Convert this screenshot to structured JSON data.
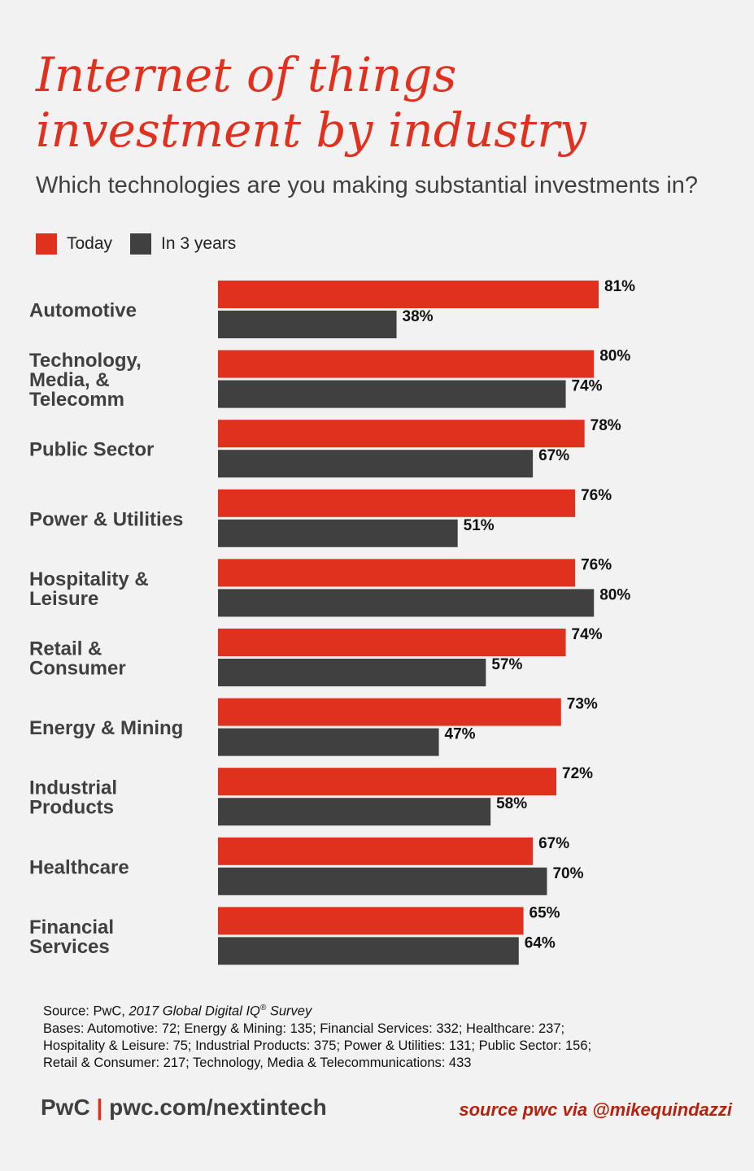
{
  "title": {
    "line1": "Internet of things",
    "line2": "investment by industry"
  },
  "subtitle": "Which technologies are you making substantial investments in?",
  "legend": {
    "today": "Today",
    "in3years": "In 3 years"
  },
  "colors": {
    "today": "#e0301e",
    "in3years": "#404040",
    "background": "#f2f2f2"
  },
  "chart_data": {
    "type": "bar",
    "orientation": "horizontal",
    "categories": [
      [
        "Automotive"
      ],
      [
        "Technology,",
        "Media, &",
        "Telecomm"
      ],
      [
        "Public Sector"
      ],
      [
        "Power & Utilities"
      ],
      [
        "Hospitality &",
        "Leisure"
      ],
      [
        "Retail &",
        "Consumer"
      ],
      [
        "Energy & Mining"
      ],
      [
        "Industrial",
        "Products"
      ],
      [
        "Healthcare"
      ],
      [
        "Financial",
        "Services"
      ]
    ],
    "series": [
      {
        "name": "Today",
        "values": [
          81,
          80,
          78,
          76,
          76,
          74,
          73,
          72,
          67,
          65
        ]
      },
      {
        "name": "In 3 years",
        "values": [
          38,
          74,
          67,
          51,
          80,
          57,
          47,
          58,
          70,
          64
        ]
      }
    ],
    "value_suffix": "%",
    "xlim": [
      0,
      100
    ],
    "grid": false,
    "legend_position": "top-left"
  },
  "notes": {
    "source_prefix": "Source: PwC, ",
    "source_italic": "2017 Global Digital IQ",
    "source_reg": "®",
    "source_italic2": " Survey",
    "bases_line1": "Bases: Automotive: 72; Energy & Mining: 135; Financial Services: 332; Healthcare: 237;",
    "bases_line2": "Hospitality & Leisure: 75; Industrial Products: 375; Power & Utilities: 131; Public Sector: 156;",
    "bases_line3": "Retail & Consumer: 217; Technology, Media & Telecommunications: 433"
  },
  "footer": {
    "brand": "PwC",
    "separator": "|",
    "url": "pwc.com/nextintech",
    "credit": "source pwc via @mikequindazzi"
  }
}
